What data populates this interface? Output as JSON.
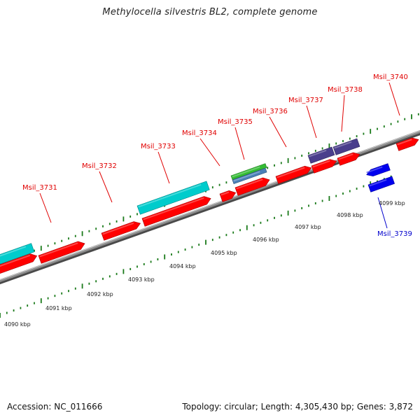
{
  "title": "Methylocella silvestris BL2, complete genome",
  "footer": {
    "accession": "Accession: NC_011666",
    "topology": "Topology: circular; Length: 4,305,430 bp; Genes: 3,872"
  },
  "ticks": [
    {
      "label": "4090 kbp"
    },
    {
      "label": "4091 kbp"
    },
    {
      "label": "4092 kbp"
    },
    {
      "label": "4093 kbp"
    },
    {
      "label": "4094 kbp"
    },
    {
      "label": "4095 kbp"
    },
    {
      "label": "4096 kbp"
    },
    {
      "label": "4097 kbp"
    },
    {
      "label": "4098 kbp"
    },
    {
      "label": "4099 kbp"
    }
  ],
  "gene_labels": [
    {
      "text": "Msil_3731"
    },
    {
      "text": "Msil_3732"
    },
    {
      "text": "Msil_3733"
    },
    {
      "text": "Msil_3734"
    },
    {
      "text": "Msil_3735"
    },
    {
      "text": "Msil_3736"
    },
    {
      "text": "Msil_3737"
    },
    {
      "text": "Msil_3738"
    },
    {
      "text": "Msil_3740"
    },
    {
      "text": "Msil_3739"
    }
  ],
  "colors": {
    "forward_gene": "#ff0000",
    "reverse_gene": "#0000ee",
    "cyan_feature": "#00cccc",
    "purple_feature": "#4a3e8c",
    "green_feature": "#33bb33",
    "steelblue_feature": "#4a7fb8",
    "backbone": "#8c8c8c",
    "tick": "#1a7a1a",
    "label_red": "#e00000",
    "label_blue": "#0000cc"
  }
}
